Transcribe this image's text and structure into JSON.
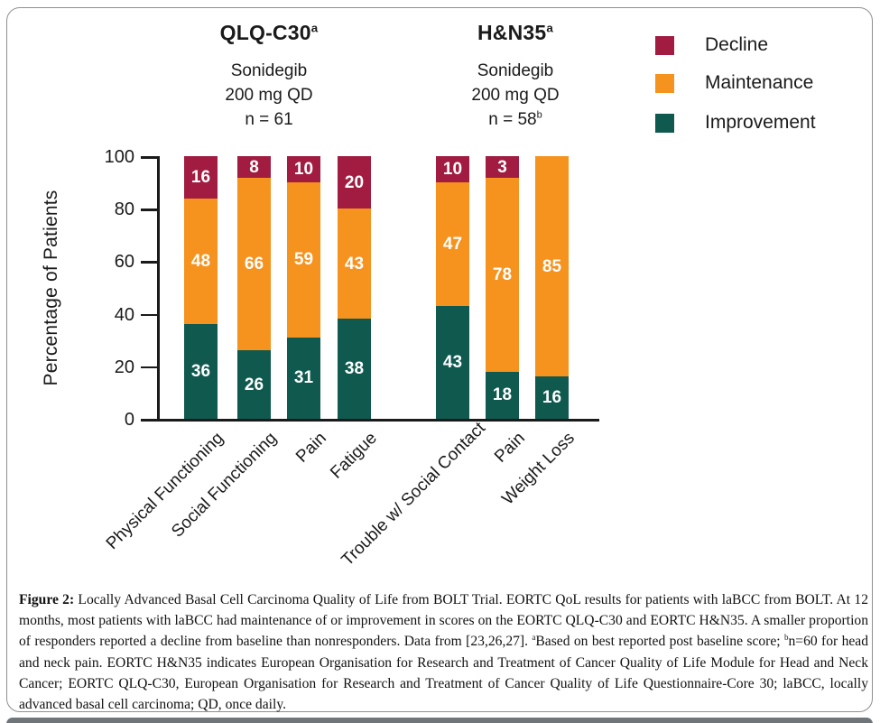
{
  "chart_data": {
    "type": "bar",
    "stacked": true,
    "title": "",
    "xlabel": "",
    "ylabel": "Percentage of Patients",
    "ylim": [
      0,
      100
    ],
    "yticks": [
      0,
      20,
      40,
      60,
      80,
      100
    ],
    "grid": false,
    "legend_position": "top-right",
    "legend": [
      {
        "label": "Decline",
        "color": "#A11C40"
      },
      {
        "label": "Maintenance",
        "color": "#F6921E"
      },
      {
        "label": "Improvement",
        "color": "#0F594F"
      }
    ],
    "groups": [
      {
        "title": "QLQ-C30",
        "title_sup": "a",
        "subtitle_lines": [
          "Sonidegib",
          "200 mg QD"
        ],
        "n_label": "n = 61",
        "n_sup": "",
        "bars": [
          {
            "category": "Physical Functioning",
            "improvement": 36,
            "maintenance": 48,
            "decline": 16
          },
          {
            "category": "Social Functioning",
            "improvement": 26,
            "maintenance": 66,
            "decline": 8
          },
          {
            "category": "Pain",
            "improvement": 31,
            "maintenance": 59,
            "decline": 10
          },
          {
            "category": "Fatigue",
            "improvement": 38,
            "maintenance": 43,
            "decline": 20
          }
        ]
      },
      {
        "title": "H&N35",
        "title_sup": "a",
        "subtitle_lines": [
          "Sonidegib",
          "200 mg QD"
        ],
        "n_label": "n = 58",
        "n_sup": "b",
        "bars": [
          {
            "category": "Trouble w/ Social Contact",
            "improvement": 43,
            "maintenance": 47,
            "decline": 10
          },
          {
            "category": "Pain",
            "improvement": 18,
            "maintenance": 78,
            "decline": 3
          },
          {
            "category": "Weight Loss",
            "improvement": 16,
            "maintenance": 85,
            "decline": 0
          }
        ]
      }
    ]
  },
  "caption": {
    "segments": [
      {
        "text": "Figure 2:",
        "bold": true
      },
      {
        "text": " Locally Advanced Basal Cell Carcinoma Quality of Life from BOLT Trial. EORTC QoL results for patients with laBCC from BOLT. At 12 months, most patients with laBCC had maintenance of or improvement in scores on the EORTC QLQ-C30 and EORTC H&N35. A smaller proportion of responders reported a decline from baseline than nonresponders. Data from [23,26,27]. "
      },
      {
        "text": "a",
        "sup": true
      },
      {
        "text": "Based on best reported post baseline score; "
      },
      {
        "text": "b",
        "sup": true
      },
      {
        "text": "n=60 for head and neck pain. EORTC H&N35 indicates European Organisation for Research and Treatment of Cancer Quality of Life Module for Head and Neck Cancer; EORTC QLQ-C30, European Organisation for Research and Treatment of Cancer Quality of Life Questionnaire-Core 30; laBCC, locally advanced basal cell carcinoma; QD, once daily."
      }
    ]
  }
}
